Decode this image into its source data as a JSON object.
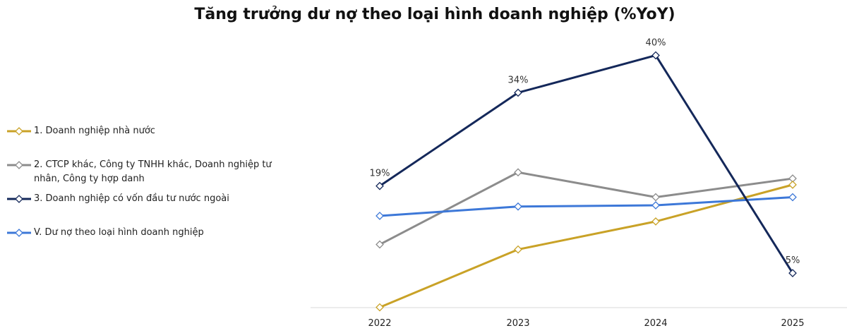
{
  "chart_data": {
    "type": "line",
    "title": "Tăng trưởng dư nợ theo loại hình doanh nghiệp (%YoY)",
    "xlabel": "",
    "ylabel": "",
    "x": [
      "2022",
      "2023",
      "2024",
      "2025"
    ],
    "ylim": [
      -1,
      43
    ],
    "grid": false,
    "legend_position": "left",
    "series": [
      {
        "name": "1. Doanh nghiệp nhà nước",
        "color": "#C9A227",
        "values": [
          -0.5,
          8.8,
          13.3,
          19.2
        ]
      },
      {
        "name": "2. CTCP khác, Công ty TNHH khác, Doanh nghiệp tư nhân, Công ty hợp danh",
        "color": "#8C8C8C",
        "values": [
          9.6,
          21.2,
          17.2,
          20.2
        ]
      },
      {
        "name": "3. Doanh nghiệp có vốn đầu tư nước ngoài",
        "color": "#14285A",
        "values": [
          19,
          34,
          40,
          5
        ]
      },
      {
        "name": "V. Dư nợ theo loại hình doanh nghiệp",
        "color": "#3D78D8",
        "values": [
          14.2,
          15.7,
          15.9,
          17.2
        ]
      }
    ],
    "data_labels": [
      {
        "series": 2,
        "index": 0,
        "text": "19%"
      },
      {
        "series": 2,
        "index": 1,
        "text": "34%"
      },
      {
        "series": 2,
        "index": 2,
        "text": "40%"
      },
      {
        "series": 2,
        "index": 3,
        "text": "5%"
      }
    ]
  }
}
